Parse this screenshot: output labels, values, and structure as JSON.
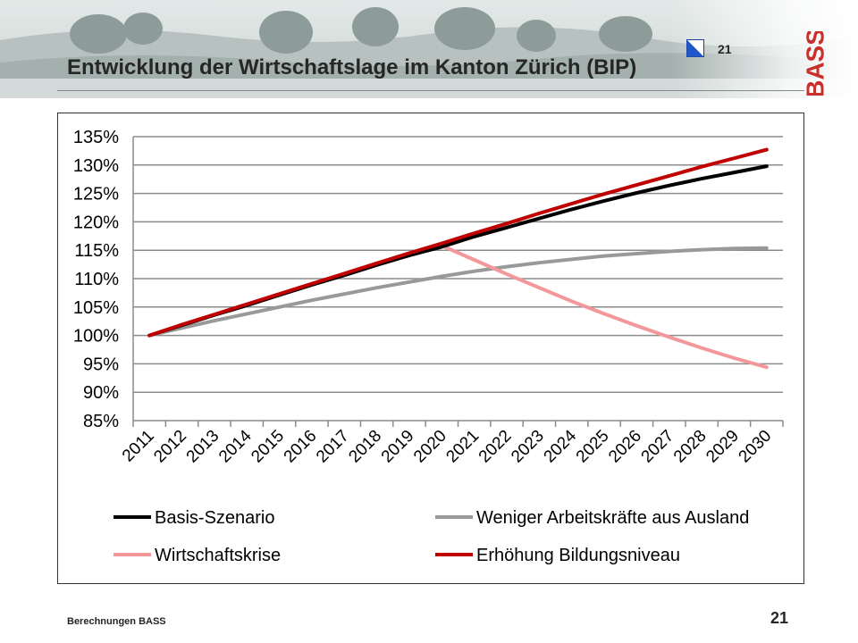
{
  "slide": {
    "title": "Entwicklung der Wirtschaftslage im Kanton Zürich (BIP)",
    "top_number": "21",
    "brand": "BASS",
    "source": "Berechnungen BASS",
    "page_number": "21"
  },
  "chart_data": {
    "type": "line",
    "title": "",
    "xlabel": "",
    "ylabel": "",
    "categories": [
      "2011",
      "2012",
      "2013",
      "2014",
      "2015",
      "2016",
      "2017",
      "2018",
      "2019",
      "2020",
      "2021",
      "2022",
      "2023",
      "2024",
      "2025",
      "2026",
      "2027",
      "2028",
      "2029",
      "2030"
    ],
    "y_ticks": [
      "85%",
      "90%",
      "95%",
      "100%",
      "105%",
      "110%",
      "115%",
      "120%",
      "125%",
      "130%",
      "135%"
    ],
    "ylim": [
      85,
      135
    ],
    "grid": true,
    "legend_position": "bottom",
    "series": [
      {
        "name": "Basis-Szenario",
        "color": "#000000",
        "values": [
          100,
          101.8,
          103.6,
          105.3,
          107.1,
          108.9,
          110.6,
          112.4,
          114.1,
          115.6,
          117.4,
          119.0,
          120.6,
          122.2,
          123.7,
          125.1,
          126.4,
          127.6,
          128.7,
          129.8
        ]
      },
      {
        "name": "Weniger Arbeitskräfte aus Ausland",
        "color": "#999999",
        "values": [
          100,
          101.3,
          102.6,
          103.8,
          105.0,
          106.2,
          107.3,
          108.4,
          109.4,
          110.4,
          111.3,
          112.1,
          112.8,
          113.4,
          114.0,
          114.4,
          114.8,
          115.1,
          115.3,
          115.4
        ]
      },
      {
        "name": "Wirtschaftskrise",
        "color": "#f4979a",
        "values": [
          100,
          101.8,
          103.6,
          105.3,
          107.1,
          108.9,
          110.6,
          112.4,
          114.1,
          115.8,
          113.3,
          110.8,
          108.4,
          106.0,
          103.8,
          101.7,
          99.7,
          97.8,
          96.0,
          94.4
        ]
      },
      {
        "name": "Erhöhung Bildungsniveau",
        "color": "#c00000",
        "values": [
          100,
          101.9,
          103.7,
          105.5,
          107.3,
          109.1,
          110.9,
          112.7,
          114.5,
          116.2,
          118.0,
          119.7,
          121.5,
          123.2,
          124.9,
          126.5,
          128.1,
          129.7,
          131.2,
          132.7
        ]
      }
    ]
  }
}
